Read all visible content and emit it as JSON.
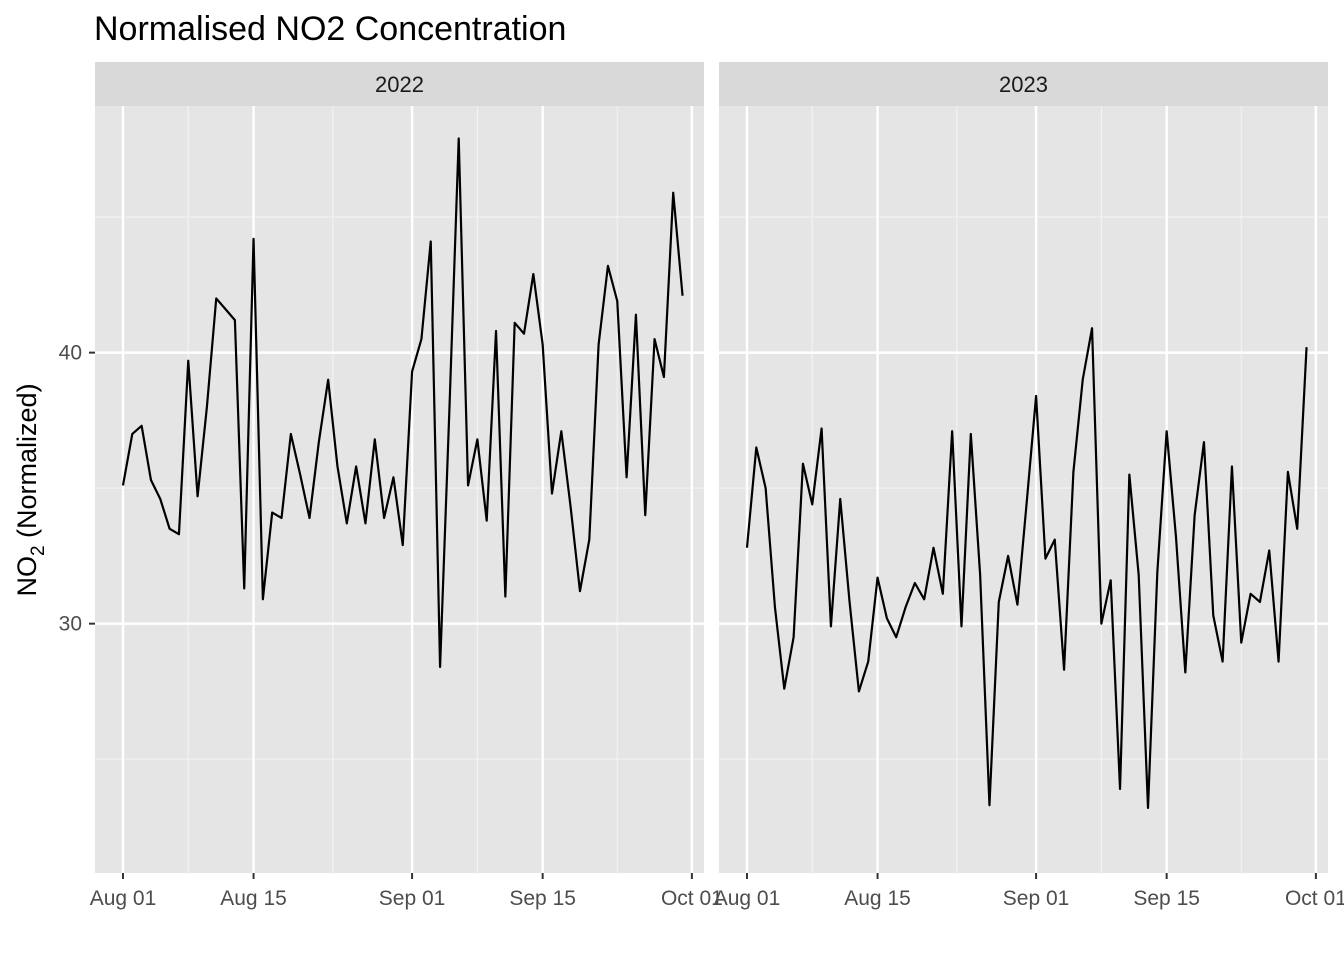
{
  "chart_data": {
    "type": "line",
    "title": "Normalised NO2 Concentration",
    "ylabel": {
      "main": "NO",
      "subscript": "2",
      "suffix": " (Normalized)"
    },
    "xlabel": "",
    "ylim": [
      20.8,
      49.1
    ],
    "y_major_ticks": [
      30,
      40
    ],
    "y_minor_ticks": [
      25,
      35,
      45
    ],
    "x_tick_days": [
      0,
      14,
      31,
      45,
      61
    ],
    "x_tick_labels": [
      "Aug 01",
      "Aug 15",
      "Sep 01",
      "Sep 15",
      "Oct 01"
    ],
    "x_minor_days": [
      7,
      22.5,
      38,
      53
    ],
    "xlim_days": [
      -3,
      62.3
    ],
    "x_unit": "days since Aug 01",
    "line_color": "#000000",
    "panel_bg": "#e5e5e5",
    "strip_bg": "#d9d9d9",
    "grid_color": "#ffffff",
    "grid": true,
    "legend": "none",
    "panels": [
      {
        "label": "2022",
        "series": {
          "values": [
            35.1,
            37.0,
            37.3,
            35.3,
            34.6,
            33.5,
            33.3,
            39.7,
            34.7,
            38.0,
            42.0,
            41.6,
            41.2,
            31.3,
            44.2,
            30.9,
            34.1,
            33.9,
            37.0,
            35.5,
            33.9,
            36.7,
            39.0,
            35.8,
            33.7,
            35.8,
            33.7,
            36.8,
            33.9,
            35.4,
            32.9,
            39.3,
            40.5,
            44.1,
            28.4,
            37.9,
            47.9,
            35.1,
            36.8,
            33.8,
            40.8,
            31.0,
            41.1,
            40.7,
            42.9,
            40.3,
            34.8,
            37.1,
            34.3,
            31.2,
            33.1,
            40.3,
            43.2,
            41.9,
            35.4,
            41.4,
            34.0,
            40.5,
            39.1,
            45.9,
            42.1
          ]
        }
      },
      {
        "label": "2023",
        "series": {
          "values": [
            32.8,
            36.5,
            35.0,
            30.6,
            27.6,
            29.5,
            35.9,
            34.4,
            37.2,
            29.9,
            34.6,
            30.8,
            27.5,
            28.6,
            31.7,
            30.2,
            29.5,
            30.6,
            31.5,
            30.9,
            32.8,
            31.1,
            37.1,
            29.9,
            37.0,
            31.8,
            23.3,
            30.8,
            32.5,
            30.7,
            34.5,
            38.4,
            32.4,
            33.1,
            28.3,
            35.6,
            39.0,
            40.9,
            30.0,
            31.6,
            23.9,
            35.5,
            31.8,
            23.2,
            31.9,
            37.1,
            33.2,
            28.2,
            34.0,
            36.7,
            30.3,
            28.6,
            35.8,
            29.3,
            31.1,
            30.8,
            32.7,
            28.6,
            35.6,
            33.5,
            40.2
          ]
        }
      }
    ]
  }
}
